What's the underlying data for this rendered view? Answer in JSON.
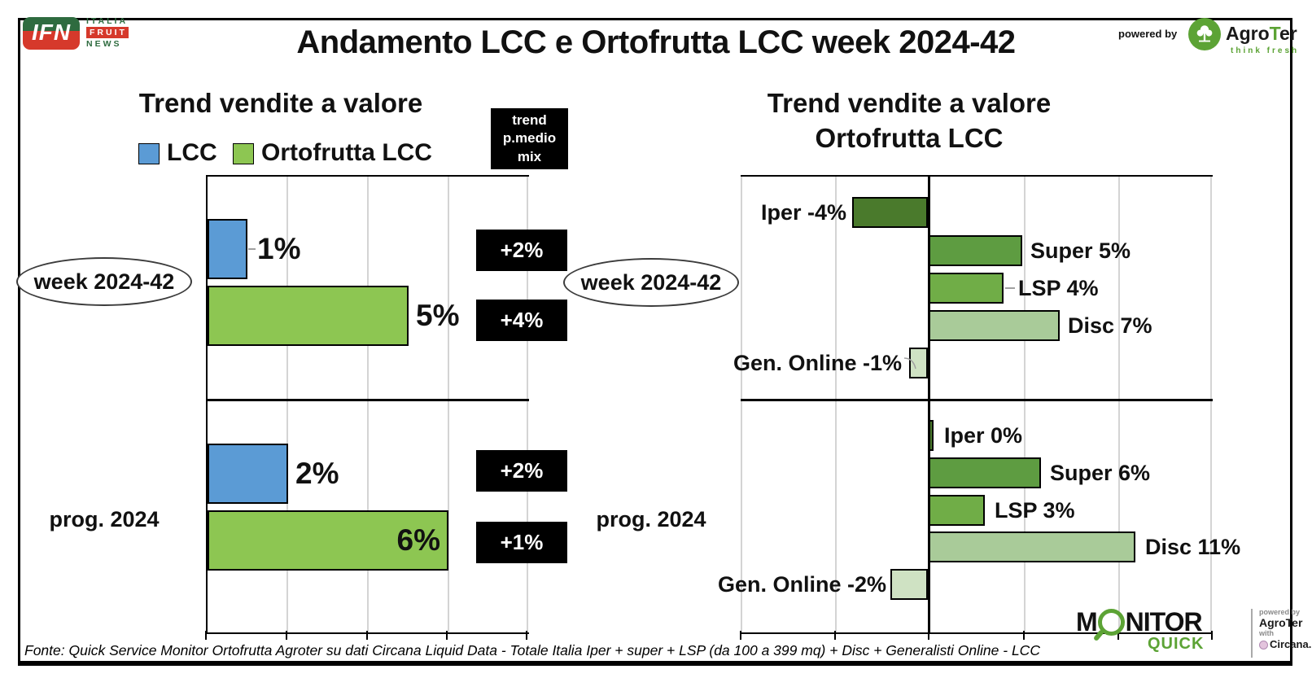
{
  "header": {
    "title": "Andamento LCC e Ortofrutta LCC week 2024-42",
    "ifn": {
      "acronym": "IFN",
      "word1": "ITALIA",
      "word2": "FRUIT",
      "word3": "NEWS"
    },
    "powered_by": "powered by",
    "agroter": {
      "prefix": "Agro",
      "accent": "T",
      "suffix": "er",
      "tagline": "think fresh"
    }
  },
  "chart_data": [
    {
      "type": "bar",
      "orientation": "horizontal",
      "title": "Trend vendite a valore",
      "unit": "%",
      "xlim": [
        0,
        8
      ],
      "gridline_step_pct": 2,
      "grid": true,
      "legend_position": "top",
      "legend_items": [
        {
          "label": "LCC",
          "color": "#5b9bd5"
        },
        {
          "label": "Ortofrutta LCC",
          "color": "#8dc652"
        }
      ],
      "annotation_box_lines": [
        "trend",
        "p.medio",
        "mix"
      ],
      "groups": [
        {
          "category": "week 2024-42",
          "series": [
            {
              "name": "LCC",
              "value": 1,
              "label": "1%",
              "color": "#5b9bd5",
              "trend_p_medio_mix": "+2%"
            },
            {
              "name": "Ortofrutta LCC",
              "value": 5,
              "label": "5%",
              "color": "#8dc652",
              "trend_p_medio_mix": "+4%"
            }
          ]
        },
        {
          "category": "prog. 2024",
          "series": [
            {
              "name": "LCC",
              "value": 2,
              "label": "2%",
              "color": "#5b9bd5",
              "trend_p_medio_mix": "+2%"
            },
            {
              "name": "Ortofrutta LCC",
              "value": 6,
              "label": "6%",
              "color": "#8dc652",
              "trend_p_medio_mix": "+1%"
            }
          ]
        }
      ]
    },
    {
      "type": "bar",
      "orientation": "horizontal",
      "title": "Trend vendite a valore Ortofrutta LCC",
      "title_line1": "Trend vendite a valore",
      "title_line2": "Ortofrutta LCC",
      "unit": "%",
      "xlim": [
        -10,
        15
      ],
      "gridline_step_pct": 5,
      "grid": true,
      "groups": [
        {
          "category": "week 2024-42",
          "series": [
            {
              "name": "Iper",
              "value": -4,
              "label": "Iper -4%",
              "color": "#4a7a2c"
            },
            {
              "name": "Super",
              "value": 5,
              "label": "Super 5%",
              "color": "#5e9c41"
            },
            {
              "name": "LSP",
              "value": 4,
              "label": "LSP 4%",
              "color": "#70ad47"
            },
            {
              "name": "Disc",
              "value": 7,
              "label": "Disc 7%",
              "color": "#a9cb99"
            },
            {
              "name": "Gen. Online",
              "value": -1,
              "label": "Gen. Online -1%",
              "color": "#cfe2c3"
            }
          ]
        },
        {
          "category": "prog. 2024",
          "series": [
            {
              "name": "Iper",
              "value": 0,
              "label": "Iper 0%",
              "color": "#4a7a2c"
            },
            {
              "name": "Super",
              "value": 6,
              "label": "Super 6%",
              "color": "#5e9c41"
            },
            {
              "name": "LSP",
              "value": 3,
              "label": "LSP 3%",
              "color": "#70ad47"
            },
            {
              "name": "Disc",
              "value": 11,
              "label": "Disc 11%",
              "color": "#a9cb99"
            },
            {
              "name": "Gen. Online",
              "value": -2,
              "label": "Gen. Online -2%",
              "color": "#cfe2c3"
            }
          ]
        }
      ]
    }
  ],
  "footer": {
    "source": "Fonte: Quick Service Monitor Ortofrutta Agroter su dati Circana Liquid Data - Totale Italia Iper + super + LSP (da 100 a 399 mq) + Disc + Generalisti Online - LCC",
    "monitor_quick": {
      "part1": "M",
      "part2": "NITOR",
      "sub": "QUICK"
    },
    "credits": {
      "powered_by": "powered by",
      "agroter": "AgroTer",
      "with": "with",
      "circana": "Circana."
    }
  }
}
